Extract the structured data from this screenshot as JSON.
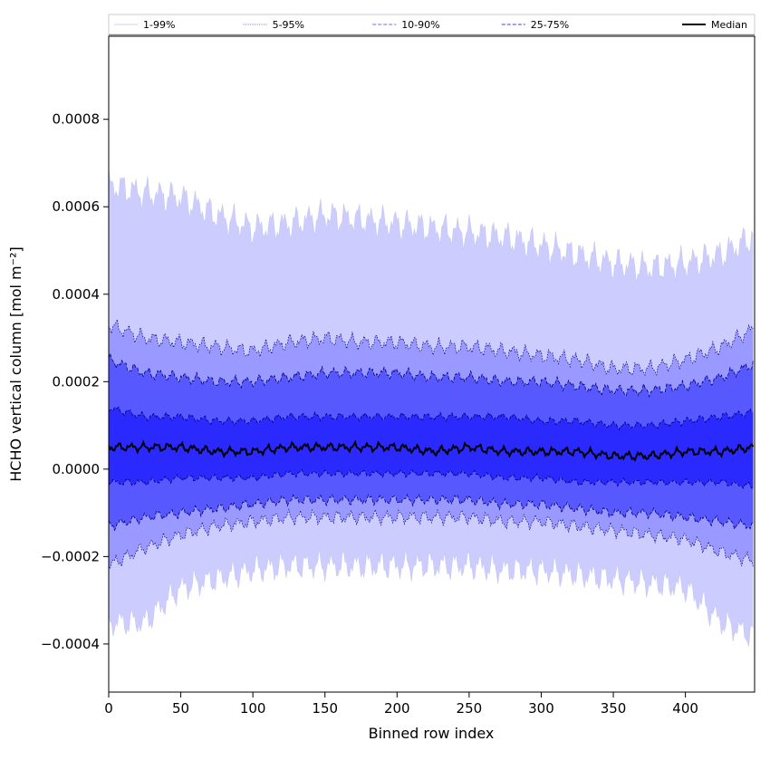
{
  "chart_data": {
    "type": "area",
    "xlabel": "Binned row index",
    "ylabel": "HCHO vertical column [mol m⁻²]",
    "xlim": [
      0,
      448
    ],
    "ylim": [
      -0.00051,
      0.00099
    ],
    "x_ticks": [
      0,
      50,
      100,
      150,
      200,
      250,
      300,
      350,
      400
    ],
    "x_tick_labels": [
      "0",
      "50",
      "100",
      "150",
      "200",
      "250",
      "300",
      "350",
      "400"
    ],
    "y_ticks": [
      -0.0004,
      -0.0002,
      0.0,
      0.0002,
      0.0004,
      0.0006,
      0.0008
    ],
    "y_tick_labels": [
      "−0.0004",
      "−0.0002",
      "0.0000",
      "0.0002",
      "0.0004",
      "0.0006",
      "0.0008"
    ],
    "grid": false,
    "legend_position": "top, above plot, single row",
    "legend": [
      {
        "label": "1-99%",
        "line_color": "#d0d0f0",
        "style": "solid-thin"
      },
      {
        "label": "5-95%",
        "line_color": "#6666cc",
        "style": "dotted-thin"
      },
      {
        "label": "10-90%",
        "line_color": "#6f6fe0",
        "style": "dashed"
      },
      {
        "label": "25-75%",
        "line_color": "#4040e0",
        "style": "dashed"
      },
      {
        "label": "Median",
        "line_color": "#000000",
        "style": "solid-thick"
      }
    ],
    "band_colors": {
      "p1_99": "#ccccff",
      "p5_95": "#9999ff",
      "p10_90": "#5858ff",
      "p25_75": "#2a2aff",
      "median": "#000000"
    },
    "x": [
      0,
      25,
      50,
      75,
      100,
      125,
      150,
      175,
      200,
      225,
      250,
      275,
      300,
      325,
      350,
      375,
      400,
      425,
      447
    ],
    "series": [
      {
        "name": "1-99%",
        "lower": [
          -0.00035,
          -0.00035,
          -0.00027,
          -0.00025,
          -0.00023,
          -0.00022,
          -0.00022,
          -0.00022,
          -0.00022,
          -0.00022,
          -0.00022,
          -0.00023,
          -0.00023,
          -0.00024,
          -0.00025,
          -0.00026,
          -0.00027,
          -0.00035,
          -0.00038
        ],
        "upper": [
          0.00065,
          0.00063,
          0.00062,
          0.00058,
          0.00055,
          0.00056,
          0.00058,
          0.00057,
          0.00056,
          0.00055,
          0.00054,
          0.00053,
          0.00051,
          0.00049,
          0.00047,
          0.00046,
          0.00047,
          0.00049,
          0.00053
        ]
      },
      {
        "name": "5-95%",
        "lower": [
          -0.00022,
          -0.00018,
          -0.00015,
          -0.00013,
          -0.00012,
          -0.00011,
          -0.00011,
          -0.00011,
          -0.00011,
          -0.00011,
          -0.00011,
          -0.00012,
          -0.00012,
          -0.00013,
          -0.00014,
          -0.00015,
          -0.00016,
          -0.00019,
          -0.00021
        ],
        "upper": [
          0.00033,
          0.0003,
          0.00029,
          0.00028,
          0.00027,
          0.00029,
          0.0003,
          0.00029,
          0.00029,
          0.00028,
          0.00028,
          0.00027,
          0.00026,
          0.00025,
          0.00023,
          0.00023,
          0.00025,
          0.00028,
          0.00032
        ]
      },
      {
        "name": "10-90%",
        "lower": [
          -0.00013,
          -0.00011,
          -0.0001,
          -9e-05,
          -8e-05,
          -7e-05,
          -7e-05,
          -7e-05,
          -7e-05,
          -7e-05,
          -7e-05,
          -8e-05,
          -8e-05,
          -9e-05,
          -0.0001,
          -0.0001,
          -0.00011,
          -0.00012,
          -0.00013
        ],
        "upper": [
          0.00025,
          0.00022,
          0.00021,
          0.0002,
          0.0002,
          0.00021,
          0.00022,
          0.00022,
          0.00022,
          0.00021,
          0.00021,
          0.0002,
          0.0002,
          0.00019,
          0.00018,
          0.00018,
          0.00019,
          0.00021,
          0.00024
        ]
      },
      {
        "name": "25-75%",
        "lower": [
          -3e-05,
          -3e-05,
          -2e-05,
          -2e-05,
          -2e-05,
          -1e-05,
          -1e-05,
          -1e-05,
          -1e-05,
          -1e-05,
          -1e-05,
          -2e-05,
          -2e-05,
          -3e-05,
          -3e-05,
          -3e-05,
          -3e-05,
          -3e-05,
          -4e-05
        ],
        "upper": [
          0.00014,
          0.00012,
          0.00012,
          0.00011,
          0.00011,
          0.00012,
          0.00012,
          0.00012,
          0.00012,
          0.00012,
          0.00012,
          0.00012,
          0.00011,
          0.00011,
          0.0001,
          0.0001,
          0.00011,
          0.00012,
          0.00013
        ]
      },
      {
        "name": "Median",
        "values": [
          5e-05,
          5e-05,
          5e-05,
          4e-05,
          4e-05,
          5e-05,
          5e-05,
          5e-05,
          5e-05,
          4e-05,
          5e-05,
          4e-05,
          4e-05,
          4e-05,
          3e-05,
          3e-05,
          4e-05,
          4e-05,
          5e-05
        ]
      }
    ]
  }
}
